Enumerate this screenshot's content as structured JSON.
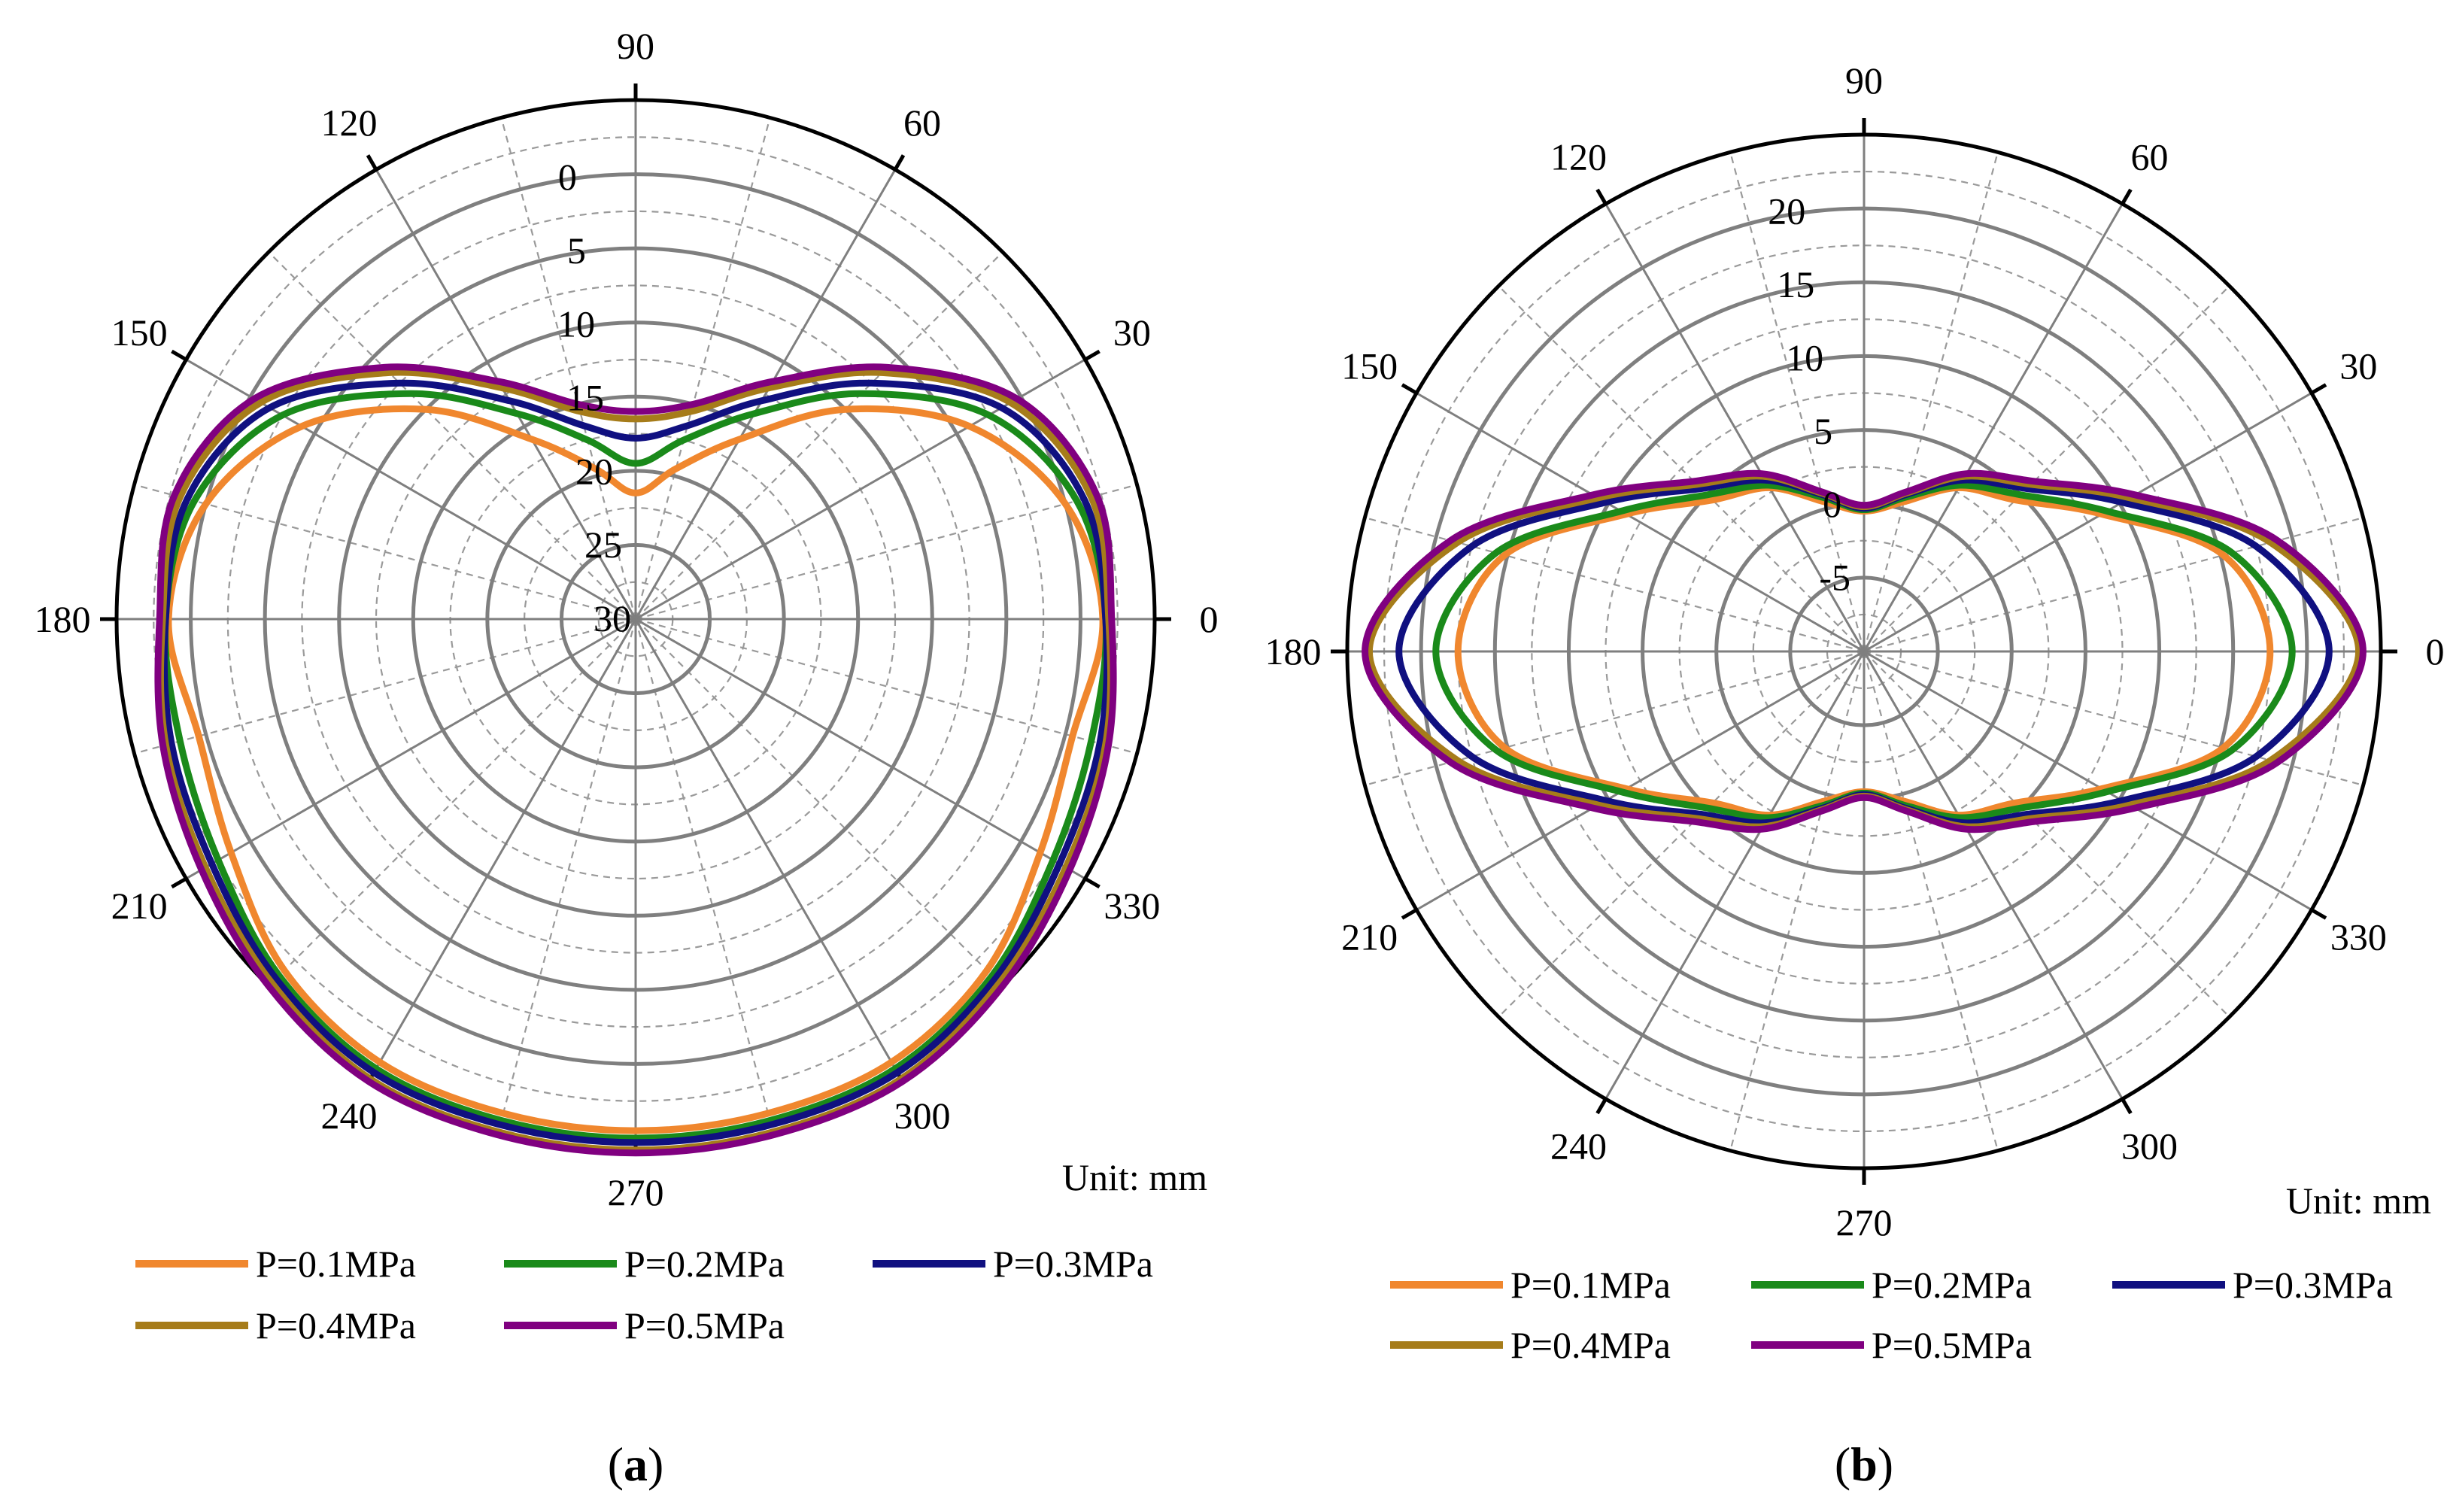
{
  "chart_data": [
    {
      "type": "polar-line",
      "panel_label": "a",
      "unit_label": "Unit: mm",
      "angle_ticks": [
        "0",
        "30",
        "60",
        "90",
        "120",
        "150",
        "180",
        "210",
        "240",
        "270",
        "300",
        "330"
      ],
      "radial_ticks": [
        "0",
        "5",
        "10",
        "15",
        "20",
        "25",
        "30"
      ],
      "radial_axis_reversed": true,
      "radial_range": [
        30,
        -5
      ],
      "angular_direction": "counterclockwise, 0 at right",
      "legend_position": "bottom",
      "series": [
        {
          "name": "P=0.1MPa",
          "color": "#F0872E",
          "angles": [
            0,
            15,
            30,
            45,
            60,
            75,
            90,
            105,
            120,
            135,
            150,
            165,
            180,
            195,
            210,
            225,
            240,
            255,
            270,
            285,
            300,
            315,
            330,
            345,
            360
          ],
          "values": [
            -1.5,
            0.0,
            4.0,
            10.0,
            16.0,
            19.5,
            21.5,
            19.5,
            16.0,
            10.0,
            4.0,
            0.0,
            -1.5,
            -0.5,
            -1.5,
            -3.5,
            -4.5,
            -4.5,
            -4.5,
            -4.5,
            -4.5,
            -3.5,
            -1.5,
            -0.5,
            -1.5
          ]
        },
        {
          "name": "P=0.2MPa",
          "color": "#1A8A1A",
          "angles": [
            0,
            15,
            30,
            45,
            60,
            75,
            90,
            105,
            120,
            135,
            150,
            165,
            180,
            195,
            210,
            225,
            240,
            255,
            270,
            285,
            300,
            315,
            330,
            345,
            360
          ],
          "values": [
            -1.7,
            -0.8,
            2.5,
            8.5,
            14.0,
            17.5,
            19.5,
            17.5,
            14.0,
            8.5,
            2.5,
            -0.8,
            -1.7,
            -1.8,
            -2.5,
            -4.0,
            -5.0,
            -5.0,
            -5.0,
            -5.0,
            -5.0,
            -4.0,
            -2.5,
            -1.8,
            -1.7
          ]
        },
        {
          "name": "P=0.3MPa",
          "color": "#101080",
          "angles": [
            0,
            15,
            30,
            45,
            60,
            75,
            90,
            105,
            120,
            135,
            150,
            165,
            180,
            195,
            210,
            225,
            240,
            255,
            270,
            285,
            300,
            315,
            330,
            345,
            360
          ],
          "values": [
            -1.7,
            -1.3,
            1.5,
            7.5,
            13.0,
            16.5,
            17.8,
            16.5,
            13.0,
            7.5,
            1.5,
            -1.3,
            -1.7,
            -2.4,
            -3.0,
            -4.3,
            -5.3,
            -5.3,
            -5.3,
            -5.3,
            -5.3,
            -4.3,
            -3.0,
            -2.4,
            -1.7
          ]
        },
        {
          "name": "P=0.4MPa",
          "color": "#A67C1A",
          "angles": [
            0,
            15,
            30,
            45,
            60,
            75,
            90,
            105,
            120,
            135,
            150,
            165,
            180,
            195,
            210,
            225,
            240,
            255,
            270,
            285,
            300,
            315,
            330,
            345,
            360
          ],
          "values": [
            -1.9,
            -1.8,
            0.8,
            6.5,
            12.0,
            15.5,
            16.5,
            15.5,
            12.0,
            6.5,
            0.8,
            -1.8,
            -1.9,
            -2.8,
            -3.5,
            -4.7,
            -5.8,
            -5.8,
            -5.8,
            -5.8,
            -5.8,
            -4.7,
            -3.5,
            -2.8,
            -1.9
          ]
        },
        {
          "name": "P=0.5MPa",
          "color": "#800080",
          "angles": [
            0,
            15,
            30,
            45,
            60,
            75,
            90,
            105,
            120,
            135,
            150,
            165,
            180,
            195,
            210,
            225,
            240,
            255,
            270,
            285,
            300,
            315,
            330,
            345,
            360
          ],
          "values": [
            -2.1,
            -2.2,
            0.3,
            6.0,
            11.5,
            15.0,
            16.0,
            15.0,
            11.5,
            6.0,
            0.3,
            -2.2,
            -2.1,
            -3.0,
            -3.8,
            -5.0,
            -6.0,
            -6.0,
            -6.0,
            -6.0,
            -6.0,
            -5.0,
            -3.8,
            -3.0,
            -2.1
          ]
        }
      ]
    },
    {
      "type": "polar-line",
      "panel_label": "b",
      "unit_label": "Unit: mm",
      "angle_ticks": [
        "0",
        "30",
        "60",
        "90",
        "120",
        "150",
        "180",
        "210",
        "240",
        "270",
        "300",
        "330"
      ],
      "radial_ticks": [
        "-5",
        "0",
        "5",
        "10",
        "15",
        "20"
      ],
      "radial_axis_reversed": false,
      "radial_range": [
        -10,
        25
      ],
      "angular_direction": "counterclockwise, 0 at right",
      "legend_position": "bottom",
      "series": [
        {
          "name": "P=0.1MPa",
          "color": "#F0872E",
          "angles": [
            0,
            15,
            30,
            45,
            60,
            75,
            90,
            105,
            120,
            135,
            150,
            165,
            180,
            195,
            210,
            225,
            240,
            255,
            270,
            285,
            300,
            315,
            330,
            345,
            360
          ],
          "values": [
            17.5,
            15.2,
            8.6,
            4.5,
            2.8,
            0.5,
            -0.5,
            0.5,
            2.8,
            4.5,
            8.6,
            15.2,
            17.5,
            15.2,
            8.6,
            4.5,
            2.8,
            0.5,
            -0.5,
            0.5,
            2.8,
            4.5,
            8.6,
            15.2,
            17.5
          ]
        },
        {
          "name": "P=0.2MPa",
          "color": "#1A8A1A",
          "angles": [
            0,
            15,
            30,
            45,
            60,
            75,
            90,
            105,
            120,
            135,
            150,
            165,
            180,
            195,
            210,
            225,
            240,
            255,
            270,
            285,
            300,
            315,
            330,
            345,
            360
          ],
          "values": [
            19.0,
            15.8,
            9.0,
            5.0,
            3.0,
            0.8,
            -0.4,
            0.8,
            3.0,
            5.0,
            9.0,
            15.8,
            19.0,
            15.8,
            9.0,
            5.0,
            3.0,
            0.8,
            -0.4,
            0.8,
            3.0,
            5.0,
            9.0,
            15.8,
            19.0
          ]
        },
        {
          "name": "P=0.3MPa",
          "color": "#101080",
          "angles": [
            0,
            15,
            30,
            45,
            60,
            75,
            90,
            105,
            120,
            135,
            150,
            165,
            180,
            195,
            210,
            225,
            240,
            255,
            270,
            285,
            300,
            315,
            330,
            345,
            360
          ],
          "values": [
            21.5,
            17.5,
            10.2,
            5.6,
            3.4,
            1.0,
            -0.3,
            1.0,
            3.4,
            5.6,
            10.2,
            17.5,
            21.5,
            17.5,
            10.2,
            5.6,
            3.4,
            1.0,
            -0.3,
            1.0,
            3.4,
            5.6,
            10.2,
            17.5,
            21.5
          ]
        },
        {
          "name": "P=0.4MPa",
          "color": "#A67C1A",
          "angles": [
            0,
            15,
            30,
            45,
            60,
            75,
            90,
            105,
            120,
            135,
            150,
            165,
            180,
            195,
            210,
            225,
            240,
            255,
            270,
            285,
            300,
            315,
            330,
            345,
            360
          ],
          "values": [
            23.5,
            18.5,
            10.8,
            6.0,
            3.7,
            1.1,
            -0.2,
            1.1,
            3.7,
            6.0,
            10.8,
            18.5,
            23.5,
            18.5,
            10.8,
            6.0,
            3.7,
            1.1,
            -0.2,
            1.1,
            3.7,
            6.0,
            10.8,
            18.5,
            23.5
          ]
        },
        {
          "name": "P=0.5MPa",
          "color": "#800080",
          "angles": [
            0,
            15,
            30,
            45,
            60,
            75,
            90,
            105,
            120,
            135,
            150,
            165,
            180,
            195,
            210,
            225,
            240,
            255,
            270,
            285,
            300,
            315,
            330,
            345,
            360
          ],
          "values": [
            23.8,
            19.0,
            11.2,
            6.3,
            3.9,
            1.2,
            -0.1,
            1.2,
            3.9,
            6.3,
            11.2,
            19.0,
            23.8,
            19.0,
            11.2,
            6.3,
            3.9,
            1.2,
            -0.1,
            1.2,
            3.9,
            6.3,
            11.2,
            19.0,
            23.8
          ]
        }
      ]
    }
  ]
}
